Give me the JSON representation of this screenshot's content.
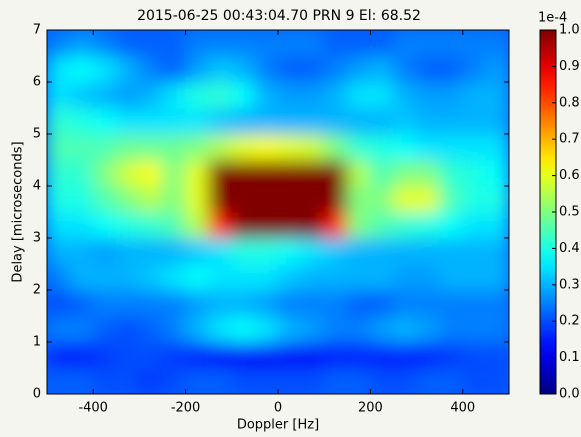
{
  "chart_data": {
    "type": "heatmap",
    "title": "2015-06-25 00:43:04.70 PRN 9 El: 68.52",
    "xlabel": "Doppler [Hz]",
    "ylabel": "Delay [microseconds]",
    "x": [
      -475,
      -425,
      -375,
      -325,
      -275,
      -225,
      -175,
      -125,
      -75,
      -25,
      25,
      75,
      125,
      175,
      225,
      275,
      325,
      375,
      425,
      475
    ],
    "y": [
      0.25,
      0.75,
      1.25,
      1.75,
      2.25,
      2.75,
      3.25,
      3.75,
      4.25,
      4.75,
      5.25,
      5.75,
      6.25,
      6.75
    ],
    "z": [
      [
        0.22,
        0.22,
        0.2,
        0.2,
        0.18,
        0.2,
        0.22,
        0.22,
        0.2,
        0.2,
        0.2,
        0.2,
        0.22,
        0.22,
        0.2,
        0.2,
        0.22,
        0.22,
        0.2,
        0.2
      ],
      [
        0.15,
        0.15,
        0.18,
        0.2,
        0.2,
        0.18,
        0.15,
        0.12,
        0.12,
        0.12,
        0.12,
        0.12,
        0.15,
        0.15,
        0.15,
        0.15,
        0.15,
        0.18,
        0.2,
        0.2
      ],
      [
        0.25,
        0.25,
        0.22,
        0.2,
        0.22,
        0.25,
        0.3,
        0.35,
        0.38,
        0.35,
        0.3,
        0.28,
        0.25,
        0.25,
        0.28,
        0.3,
        0.28,
        0.25,
        0.25,
        0.25
      ],
      [
        0.2,
        0.22,
        0.25,
        0.25,
        0.25,
        0.25,
        0.28,
        0.3,
        0.3,
        0.28,
        0.25,
        0.25,
        0.25,
        0.22,
        0.22,
        0.25,
        0.25,
        0.25,
        0.25,
        0.25
      ],
      [
        0.25,
        0.3,
        0.3,
        0.3,
        0.32,
        0.35,
        0.38,
        0.35,
        0.35,
        0.35,
        0.32,
        0.3,
        0.3,
        0.3,
        0.3,
        0.28,
        0.28,
        0.3,
        0.3,
        0.3
      ],
      [
        0.3,
        0.3,
        0.28,
        0.3,
        0.3,
        0.3,
        0.32,
        0.35,
        0.4,
        0.4,
        0.38,
        0.35,
        0.32,
        0.3,
        0.3,
        0.3,
        0.3,
        0.3,
        0.3,
        0.3
      ],
      [
        0.35,
        0.35,
        0.38,
        0.4,
        0.42,
        0.45,
        0.55,
        0.85,
        1.0,
        1.0,
        1.0,
        1.0,
        0.85,
        0.5,
        0.45,
        0.42,
        0.4,
        0.38,
        0.35,
        0.35
      ],
      [
        0.4,
        0.4,
        0.45,
        0.5,
        0.55,
        0.5,
        0.6,
        1.0,
        1.0,
        1.0,
        1.0,
        1.0,
        1.0,
        0.5,
        0.5,
        0.6,
        0.6,
        0.45,
        0.4,
        0.4
      ],
      [
        0.42,
        0.42,
        0.5,
        0.58,
        0.62,
        0.5,
        0.6,
        1.0,
        1.0,
        1.0,
        1.0,
        1.0,
        1.0,
        0.55,
        0.45,
        0.5,
        0.5,
        0.42,
        0.4,
        0.38
      ],
      [
        0.45,
        0.45,
        0.45,
        0.48,
        0.48,
        0.48,
        0.5,
        0.55,
        0.6,
        0.62,
        0.6,
        0.58,
        0.5,
        0.42,
        0.4,
        0.38,
        0.35,
        0.35,
        0.35,
        0.35
      ],
      [
        0.42,
        0.4,
        0.38,
        0.35,
        0.35,
        0.35,
        0.35,
        0.32,
        0.3,
        0.3,
        0.3,
        0.3,
        0.3,
        0.3,
        0.3,
        0.32,
        0.3,
        0.3,
        0.3,
        0.3
      ],
      [
        0.35,
        0.32,
        0.3,
        0.28,
        0.3,
        0.35,
        0.4,
        0.42,
        0.38,
        0.3,
        0.28,
        0.28,
        0.3,
        0.35,
        0.35,
        0.3,
        0.28,
        0.28,
        0.3,
        0.3
      ],
      [
        0.35,
        0.38,
        0.35,
        0.3,
        0.25,
        0.22,
        0.28,
        0.32,
        0.3,
        0.25,
        0.22,
        0.22,
        0.25,
        0.28,
        0.3,
        0.25,
        0.22,
        0.22,
        0.25,
        0.28
      ],
      [
        0.25,
        0.28,
        0.25,
        0.22,
        0.22,
        0.22,
        0.25,
        0.25,
        0.25,
        0.25,
        0.25,
        0.25,
        0.22,
        0.22,
        0.22,
        0.25,
        0.25,
        0.25,
        0.25,
        0.25
      ]
    ],
    "xlim": [
      -500,
      500
    ],
    "ylim": [
      0,
      7
    ],
    "xticks": [
      -400,
      -200,
      0,
      200,
      400
    ],
    "yticks": [
      0,
      1,
      2,
      3,
      4,
      5,
      6,
      7
    ],
    "colormap": "jet",
    "clim": [
      0,
      1
    ],
    "colorbar_offset": "1e-4",
    "colorbar_ticks": [
      {
        "value": 0,
        "label": "0.0"
      },
      0.1,
      0.2,
      0.3,
      0.4,
      0.5,
      0.6,
      0.7,
      0.8,
      0.9,
      {
        "value": 1,
        "label": "1.0"
      }
    ]
  }
}
